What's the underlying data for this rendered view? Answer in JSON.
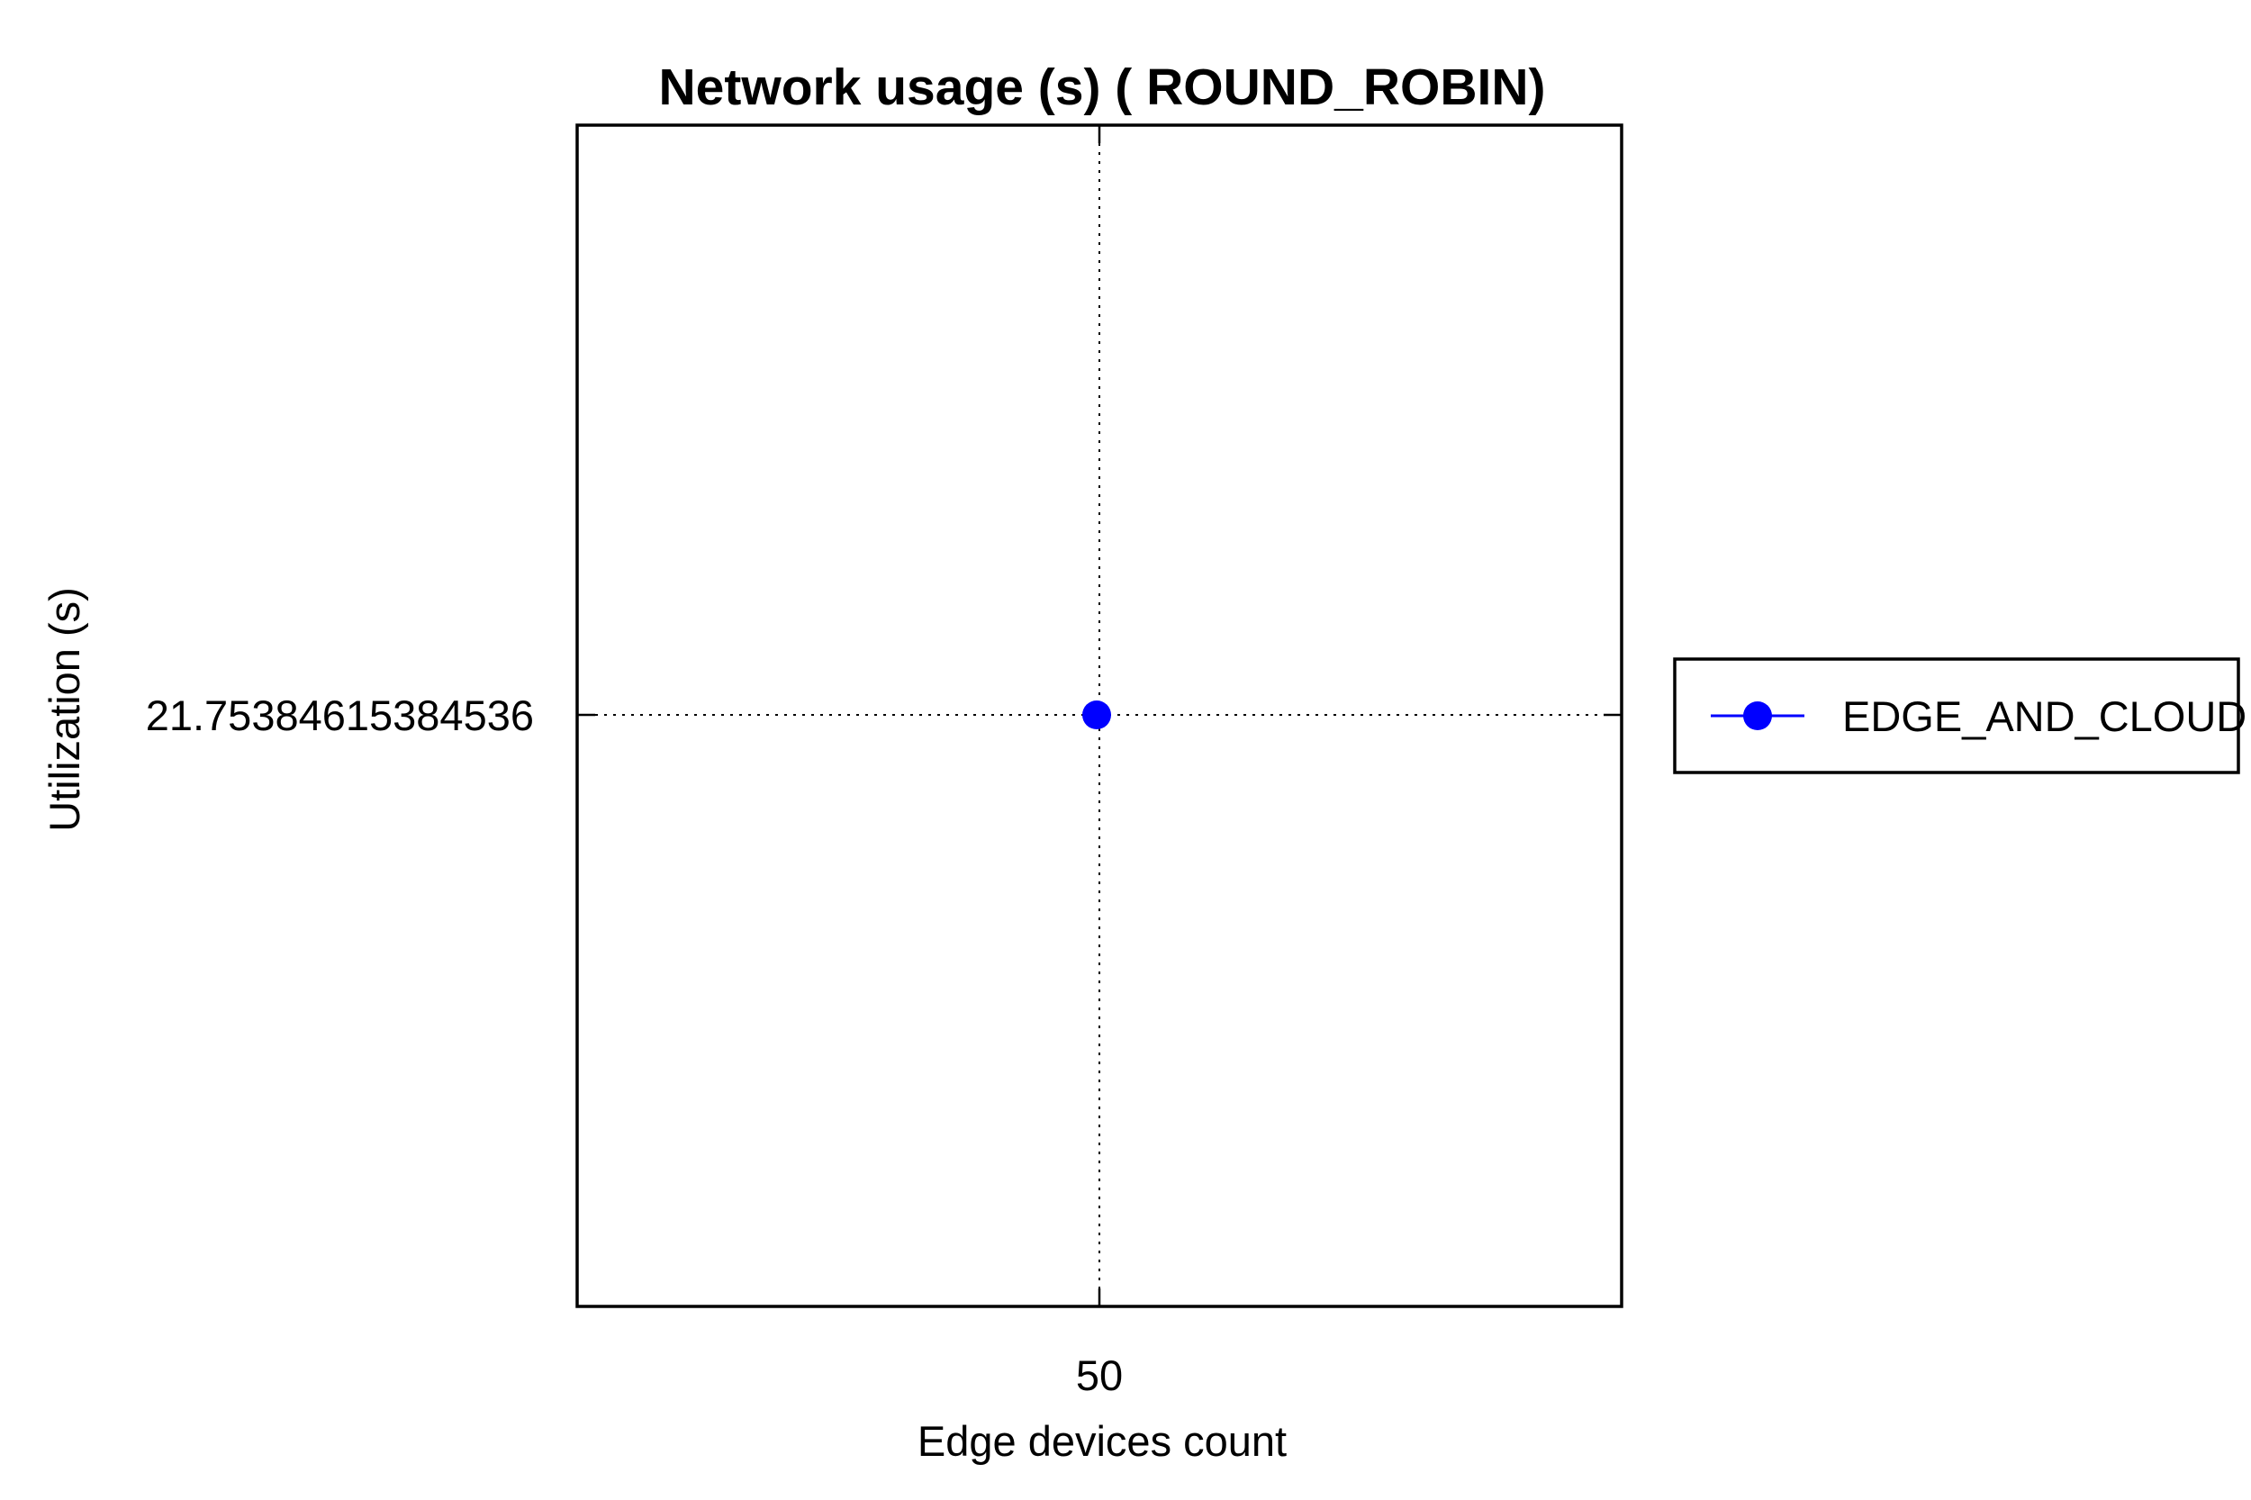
{
  "chart_data": {
    "type": "line",
    "title": "Network usage (s) ( ROUND_ROBIN)",
    "xlabel": "Edge devices count",
    "ylabel": "Utilization (s)",
    "x_ticks": [
      "50"
    ],
    "y_ticks": [
      "21.75384615384536"
    ],
    "x": [
      50
    ],
    "series": [
      {
        "name": "EDGE_AND_CLOUD",
        "values": [
          21.75384615384536
        ],
        "color": "#0000ff",
        "marker": "circle"
      }
    ],
    "grid": true,
    "grid_style": "dotted",
    "legend_position": "outside-right"
  }
}
